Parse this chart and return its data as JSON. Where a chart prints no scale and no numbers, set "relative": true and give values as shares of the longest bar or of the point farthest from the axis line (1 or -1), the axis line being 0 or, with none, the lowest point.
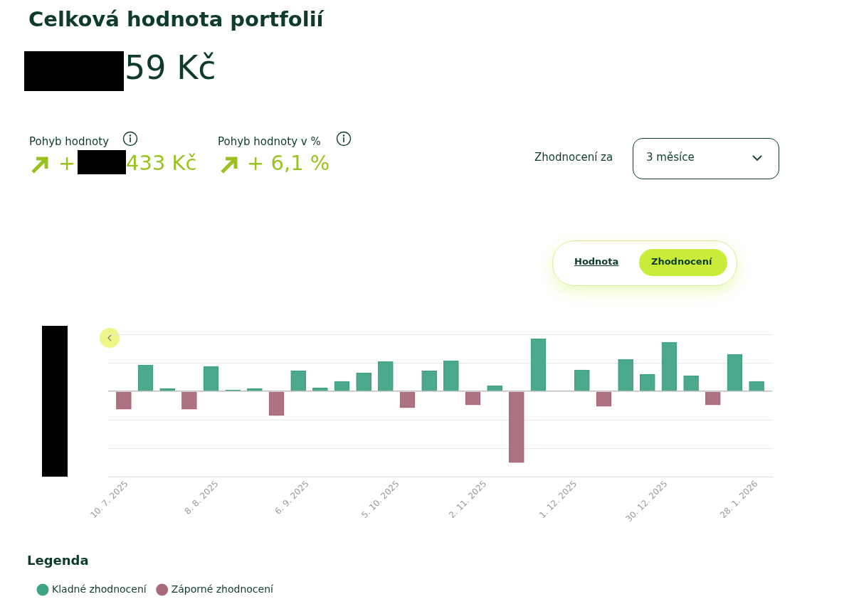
{
  "chart_data": {
    "type": "bar",
    "title": "Celková hodnota portfolií",
    "annotations": [
      "59 Kč",
      "Pohyb hodnoty",
      "+",
      "433 Kč",
      "Pohyb hodnoty v %",
      "+ 6,1 %",
      "Zhodnocení za",
      "3 měsíce",
      "Hodnota",
      "Zhodnocení"
    ],
    "relative": true,
    "x": [
      "2025-07-09",
      "2025-07-16",
      "2025-07-23",
      "2025-07-30",
      "2025-08-06",
      "2025-08-13",
      "2025-08-20",
      "2025-08-27",
      "2025-09-03",
      "2025-09-10",
      "2025-09-17",
      "2025-09-24",
      "2025-10-01",
      "2025-10-08",
      "2025-10-15",
      "2025-10-22",
      "2025-10-29",
      "2025-11-05",
      "2025-11-12",
      "2025-11-19",
      "2025-11-26",
      "2025-12-03",
      "2025-12-10",
      "2025-12-17",
      "2025-12-24",
      "2025-12-31",
      "2026-01-07",
      "2026-01-14",
      "2026-01-21",
      "2026-01-28"
    ],
    "xlim": [
      "2025-07-04",
      "2026-02-02"
    ],
    "xticks": [
      {
        "value": "2025-07-10",
        "label": "10. 7. 2025"
      },
      {
        "value": "2025-08-08",
        "label": "8. 8. 2025"
      },
      {
        "value": "2025-09-06",
        "label": "6. 9. 2025"
      },
      {
        "value": "2025-10-05",
        "label": "5. 10. 2025"
      },
      {
        "value": "2025-11-02",
        "label": "2. 11. 2025"
      },
      {
        "value": "2025-12-01",
        "label": "1. 12. 2025"
      },
      {
        "value": "2025-12-30",
        "label": "30. 12. 2025"
      },
      {
        "value": "2026-01-28",
        "label": "28. 1. 2026"
      }
    ],
    "tick_labels": "x",
    "grid": "y",
    "legend_title": "Legenda",
    "legend": "bottom left",
    "series": [
      {
        "name": "Kladné zhodnocení",
        "color": "#3fa386",
        "values": [
          null,
          0.37,
          0.04,
          null,
          0.35,
          0.02,
          0.04,
          null,
          0.29,
          0.05,
          0.14,
          0.26,
          0.42,
          null,
          0.29,
          0.43,
          null,
          0.08,
          null,
          0.74,
          0,
          0.3,
          null,
          0.45,
          0.24,
          0.69,
          0.22,
          null,
          0.52,
          0.14
        ]
      },
      {
        "name": "Záporné zhodnocení",
        "color": "#a8697a",
        "values": [
          -0.25,
          null,
          null,
          -0.25,
          null,
          null,
          null,
          -0.34,
          null,
          null,
          null,
          null,
          null,
          -0.23,
          null,
          null,
          -0.19,
          null,
          -1,
          null,
          null,
          null,
          -0.21,
          null,
          null,
          null,
          null,
          -0.19,
          null,
          null
        ]
      }
    ]
  }
}
